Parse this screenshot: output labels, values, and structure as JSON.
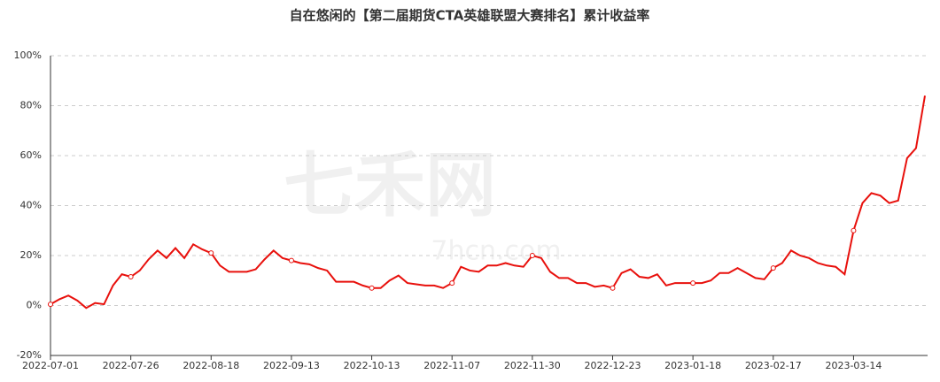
{
  "chart_data": {
    "type": "line",
    "title": "自在悠闲的【第二届期货CTA英雄联盟大赛排名】累计收益率",
    "watermark": "七禾网",
    "watermark_url": "7hcn.com",
    "categories": [
      "2022-07-01",
      null,
      null,
      null,
      null,
      null,
      null,
      null,
      null,
      "2022-07-26",
      null,
      null,
      null,
      null,
      null,
      null,
      null,
      null,
      "2022-08-18",
      null,
      null,
      null,
      null,
      null,
      null,
      null,
      null,
      "2022-09-13",
      null,
      null,
      null,
      null,
      null,
      null,
      null,
      null,
      "2022-10-13",
      null,
      null,
      null,
      null,
      null,
      null,
      null,
      null,
      "2022-11-07",
      null,
      null,
      null,
      null,
      null,
      null,
      null,
      null,
      "2022-11-30",
      null,
      null,
      null,
      null,
      null,
      null,
      null,
      null,
      "2022-12-23",
      null,
      null,
      null,
      null,
      null,
      null,
      null,
      null,
      "2023-01-18",
      null,
      null,
      null,
      null,
      null,
      null,
      null,
      null,
      "2023-02-17",
      null,
      null,
      null,
      null,
      null,
      null,
      null,
      null,
      "2023-03-14",
      null,
      null,
      null,
      null,
      null,
      null,
      null,
      null
    ],
    "series": [
      {
        "name": "累计收益率",
        "color": "#e8100c",
        "values": [
          0.5,
          2.5,
          4,
          2,
          -1,
          1,
          0.5,
          8,
          12.5,
          11.5,
          14,
          18.5,
          22,
          19,
          23,
          19,
          24.5,
          22.5,
          21,
          16,
          13.5,
          13.5,
          13.5,
          14.5,
          18.5,
          22,
          19,
          18,
          17,
          16.5,
          15,
          14,
          9.5,
          9.5,
          9.5,
          8,
          7,
          7,
          10,
          12,
          9,
          8.5,
          8,
          8,
          7,
          9,
          15.5,
          14,
          13.5,
          16,
          16,
          17,
          16,
          15.5,
          20,
          19,
          13.5,
          11,
          11,
          9,
          9,
          7.5,
          8,
          7,
          13,
          14.5,
          11.5,
          11,
          12.5,
          8,
          9,
          9,
          9,
          9,
          10,
          13,
          13,
          15,
          13,
          11,
          10.5,
          15,
          17,
          22,
          20,
          19,
          17,
          16,
          15.5,
          12.5,
          30,
          41,
          45,
          44,
          41,
          42,
          59,
          63,
          84
        ]
      }
    ],
    "ylim": [
      -20,
      100
    ],
    "yticks": [
      {
        "value": -20,
        "label": "-20%"
      },
      {
        "value": 0,
        "label": "0%"
      },
      {
        "value": 20,
        "label": "20%"
      },
      {
        "value": 40,
        "label": "40%"
      },
      {
        "value": 60,
        "label": "60%"
      },
      {
        "value": 80,
        "label": "80%"
      },
      {
        "value": 100,
        "label": "100%"
      }
    ],
    "grid": true
  }
}
